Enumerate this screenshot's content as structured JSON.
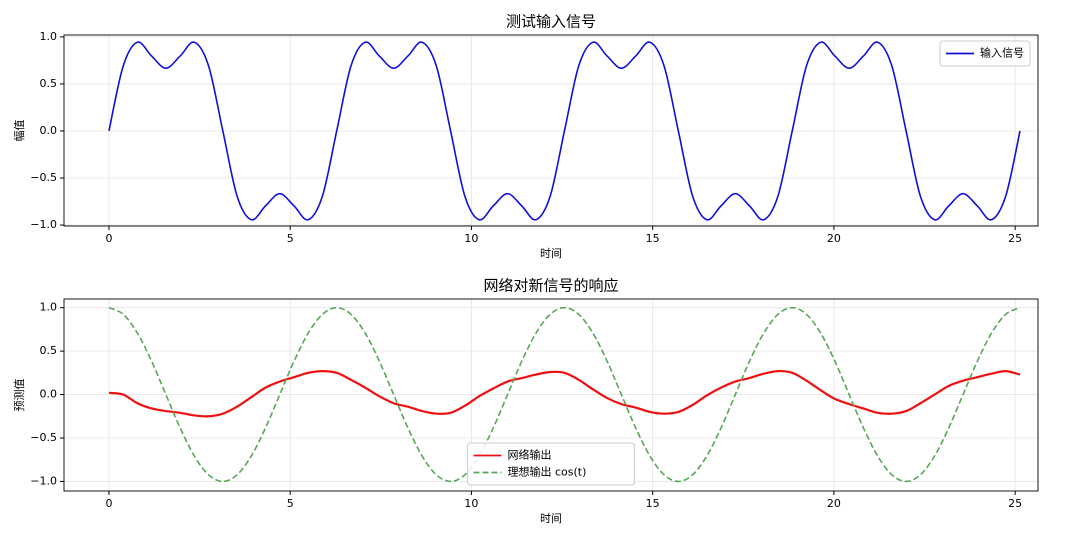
{
  "chart_data": [
    {
      "type": "line",
      "title": "测试输入信号",
      "xlabel": "时间",
      "ylabel": "幅值",
      "x": [
        0,
        0.393,
        0.785,
        1.178,
        1.571,
        1.963,
        2.356,
        2.749,
        3.142,
        3.534,
        3.927,
        4.32,
        4.712,
        5.105,
        5.498,
        5.89,
        6.283,
        6.676,
        7.069,
        7.461,
        7.854,
        8.247,
        8.639,
        9.032,
        9.425,
        9.817,
        10.21,
        10.603,
        10.996,
        11.388,
        11.781,
        12.174,
        12.566,
        12.959,
        13.352,
        13.744,
        14.137,
        14.53,
        14.923,
        15.315,
        15.708,
        16.101,
        16.493,
        16.886,
        17.279,
        17.671,
        18.064,
        18.457,
        18.85,
        19.242,
        19.635,
        20.028,
        20.42,
        20.813,
        21.206,
        21.598,
        21.991,
        22.384,
        22.777,
        23.169,
        23.562,
        23.955,
        24.347,
        24.74,
        25.133
      ],
      "series": [
        {
          "name": "输入信号",
          "color": "#1010d8",
          "linestyle": "solid",
          "values": [
            0,
            0.691,
            0.943,
            0.796,
            0.667,
            0.796,
            0.943,
            0.691,
            0,
            -0.691,
            -0.943,
            -0.796,
            -0.667,
            -0.796,
            -0.943,
            -0.691,
            0,
            0.691,
            0.943,
            0.796,
            0.667,
            0.796,
            0.943,
            0.691,
            0,
            -0.691,
            -0.943,
            -0.796,
            -0.667,
            -0.796,
            -0.943,
            -0.691,
            0,
            0.691,
            0.943,
            0.796,
            0.667,
            0.796,
            0.943,
            0.691,
            0,
            -0.691,
            -0.943,
            -0.796,
            -0.667,
            -0.796,
            -0.943,
            -0.691,
            0,
            0.691,
            0.943,
            0.796,
            0.667,
            0.796,
            0.943,
            0.691,
            0,
            -0.691,
            -0.943,
            -0.796,
            -0.667,
            -0.796,
            -0.943,
            -0.691,
            0
          ]
        }
      ],
      "xlim": [
        -1.24,
        25.63
      ],
      "xticks": [
        0,
        5,
        10,
        15,
        20,
        25
      ],
      "ylim": [
        -1.01,
        1.02
      ],
      "yticks": [
        {
          "value": -1,
          "label": "−1.0"
        },
        {
          "value": -0.5,
          "label": "−0.5"
        },
        {
          "value": 0,
          "label": "0.0"
        },
        {
          "value": 0.5,
          "label": "0.5"
        },
        {
          "value": 1,
          "label": "1.0"
        }
      ],
      "grid": true,
      "legend": "upper right"
    },
    {
      "type": "line",
      "title": "网络对新信号的响应",
      "xlabel": "时间",
      "ylabel": "预测值",
      "x": [
        0,
        0.393,
        0.785,
        1.178,
        1.571,
        1.963,
        2.356,
        2.749,
        3.142,
        3.534,
        3.927,
        4.32,
        4.712,
        5.105,
        5.498,
        5.89,
        6.283,
        6.676,
        7.069,
        7.461,
        7.854,
        8.247,
        8.639,
        9.032,
        9.425,
        9.817,
        10.21,
        10.603,
        10.996,
        11.388,
        11.781,
        12.174,
        12.566,
        12.959,
        13.352,
        13.744,
        14.137,
        14.53,
        14.923,
        15.315,
        15.708,
        16.101,
        16.493,
        16.886,
        17.279,
        17.671,
        18.064,
        18.457,
        18.85,
        19.242,
        19.635,
        20.028,
        20.42,
        20.813,
        21.206,
        21.598,
        21.991,
        22.384,
        22.777,
        23.169,
        23.562,
        23.955,
        24.347,
        24.74,
        25.133
      ],
      "series": [
        {
          "name": "网络输出",
          "color": "#ee1111",
          "linestyle": "solid",
          "values": [
            0.02,
            0.0,
            -0.1,
            -0.16,
            -0.19,
            -0.21,
            -0.24,
            -0.25,
            -0.22,
            -0.14,
            -0.03,
            0.08,
            0.15,
            0.2,
            0.25,
            0.27,
            0.25,
            0.17,
            0.08,
            -0.02,
            -0.1,
            -0.14,
            -0.19,
            -0.22,
            -0.21,
            -0.13,
            -0.02,
            0.07,
            0.15,
            0.19,
            0.23,
            0.26,
            0.25,
            0.17,
            0.06,
            -0.04,
            -0.11,
            -0.15,
            -0.2,
            -0.22,
            -0.2,
            -0.12,
            -0.01,
            0.08,
            0.15,
            0.19,
            0.24,
            0.27,
            0.25,
            0.16,
            0.05,
            -0.05,
            -0.11,
            -0.16,
            -0.21,
            -0.22,
            -0.19,
            -0.1,
            0.0,
            0.1,
            0.16,
            0.2,
            0.24,
            0.27,
            0.23
          ]
        },
        {
          "name": "理想输出 cos(t)",
          "color": "#55a855",
          "linestyle": "dashed",
          "values": [
            1,
            0.924,
            0.707,
            0.383,
            0,
            -0.383,
            -0.707,
            -0.924,
            -1,
            -0.924,
            -0.707,
            -0.383,
            0,
            0.383,
            0.707,
            0.924,
            1,
            0.924,
            0.707,
            0.383,
            0,
            -0.383,
            -0.707,
            -0.924,
            -1,
            -0.924,
            -0.707,
            -0.383,
            0,
            0.383,
            0.707,
            0.924,
            1,
            0.924,
            0.707,
            0.383,
            0,
            -0.383,
            -0.707,
            -0.924,
            -1,
            -0.924,
            -0.707,
            -0.383,
            0,
            0.383,
            0.707,
            0.924,
            1,
            0.924,
            0.707,
            0.383,
            0,
            -0.383,
            -0.707,
            -0.924,
            -1,
            -0.924,
            -0.707,
            -0.383,
            0,
            0.383,
            0.707,
            0.924,
            1
          ]
        }
      ],
      "xlim": [
        -1.24,
        25.63
      ],
      "xticks": [
        0,
        5,
        10,
        15,
        20,
        25
      ],
      "ylim": [
        -1.11,
        1.1
      ],
      "yticks": [
        {
          "value": -1,
          "label": "−1.0"
        },
        {
          "value": -0.5,
          "label": "−0.5"
        },
        {
          "value": 0,
          "label": "0.0"
        },
        {
          "value": 0.5,
          "label": "0.5"
        },
        {
          "value": 1,
          "label": "1.0"
        }
      ],
      "grid": true,
      "legend": "lower center"
    }
  ]
}
